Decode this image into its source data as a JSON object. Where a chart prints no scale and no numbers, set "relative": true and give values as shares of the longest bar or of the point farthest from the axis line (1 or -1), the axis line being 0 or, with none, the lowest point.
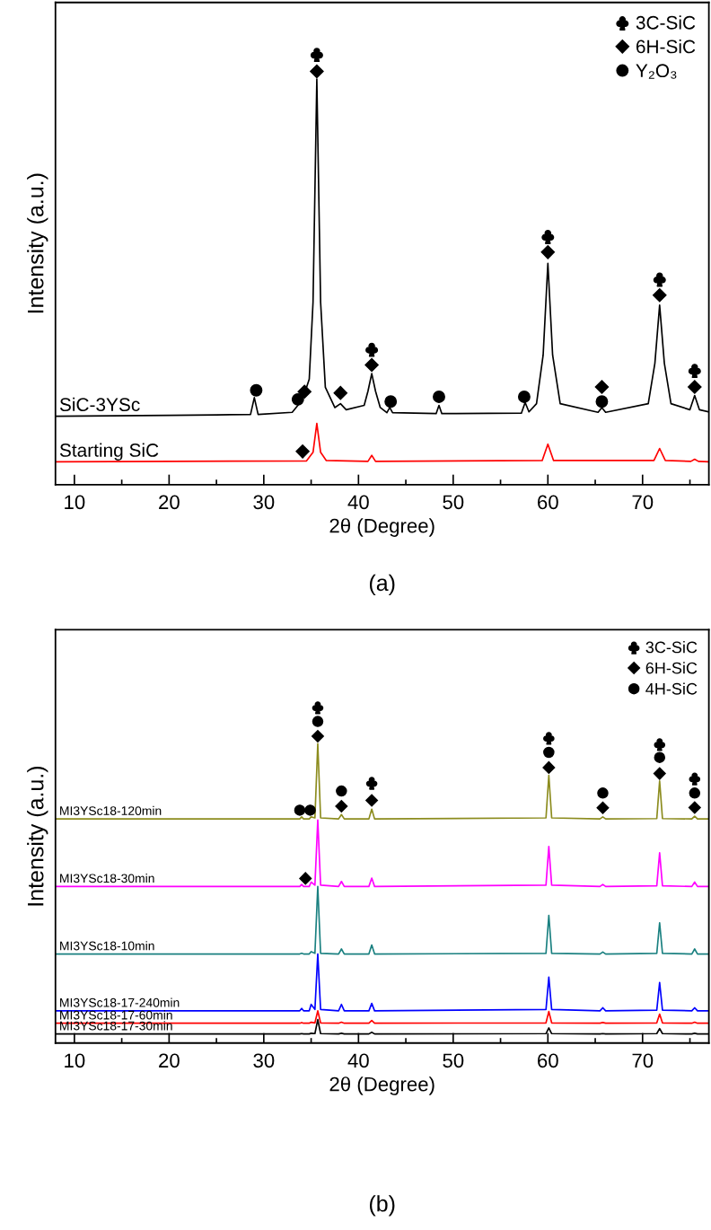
{
  "chart_data": [
    {
      "type": "line",
      "relative": true,
      "xlabel": "2θ (Degree)",
      "ylabel": "Intensity (a.u.)",
      "annotations": [
        "(a)"
      ],
      "xlim": [
        8,
        77
      ],
      "xticks": [
        10,
        {
          "value": 15,
          "label": null
        },
        20,
        {
          "value": 25,
          "label": null
        },
        30,
        {
          "value": 35,
          "label": null
        },
        40,
        {
          "value": 45,
          "label": null
        },
        50,
        {
          "value": 55,
          "label": null
        },
        60,
        {
          "value": 65,
          "label": null
        },
        70,
        {
          "value": 75,
          "label": null
        }
      ],
      "tick_labels": "x",
      "legend": "top right",
      "grid": false,
      "series": [
        {
          "name": "SiC-3YSc",
          "color": "#000000",
          "x": [
            8,
            20,
            25,
            28.6,
            29.0,
            29.4,
            33.0,
            33.6,
            34.1,
            34.8,
            35.2,
            35.6,
            36.0,
            36.5,
            37.5,
            38.1,
            38.7,
            40.6,
            41.0,
            41.4,
            41.8,
            42.3,
            43.0,
            43.3,
            43.6,
            48.2,
            48.5,
            48.8,
            57.2,
            57.6,
            58.0,
            58.8,
            59.5,
            60.0,
            60.5,
            61.3,
            65.3,
            65.7,
            66.1,
            70.6,
            71.3,
            71.8,
            72.3,
            73.0,
            75.0,
            75.5,
            76.0,
            77
          ],
          "values": [
            0.159,
            0.161,
            0.162,
            0.163,
            0.202,
            0.163,
            0.168,
            0.184,
            0.198,
            0.245,
            0.424,
            0.942,
            0.424,
            0.226,
            0.179,
            0.188,
            0.174,
            0.184,
            0.217,
            0.258,
            0.217,
            0.179,
            0.167,
            0.179,
            0.167,
            0.165,
            0.184,
            0.165,
            0.166,
            0.191,
            0.169,
            0.188,
            0.301,
            0.514,
            0.301,
            0.188,
            0.168,
            0.179,
            0.168,
            0.188,
            0.282,
            0.417,
            0.282,
            0.188,
            0.174,
            0.207,
            0.174,
            0.169
          ]
        },
        {
          "name": "Starting SiC",
          "color": "#ff0000",
          "x": [
            8,
            34.5,
            35.2,
            35.6,
            36.0,
            36.6,
            41.0,
            41.4,
            41.8,
            59.4,
            60.0,
            60.6,
            71.2,
            71.8,
            72.4,
            75.1,
            75.5,
            75.9,
            77
          ],
          "values": [
            0.053,
            0.055,
            0.075,
            0.142,
            0.075,
            0.056,
            0.054,
            0.068,
            0.054,
            0.056,
            0.094,
            0.056,
            0.056,
            0.084,
            0.056,
            0.054,
            0.059,
            0.054,
            0.053
          ]
        },
        {
          "type": "scatter",
          "name": "3C-SiC",
          "color": "#000000",
          "x": [
            35.6,
            41.4,
            60.0,
            71.8,
            75.5
          ],
          "values": [
            1.0,
            0.315,
            0.577,
            0.478,
            0.266
          ]
        },
        {
          "type": "scatter",
          "name": "6H-SiC",
          "color": "#000000",
          "marker": "diamond",
          "x": [
            35.6,
            41.4,
            60.0,
            71.8,
            75.5,
            65.7,
            34.3,
            38.1,
            34.1
          ],
          "values": [
            0.96,
            0.278,
            0.54,
            0.44,
            0.227,
            0.227,
            0.216,
            0.213,
            0.077
          ]
        },
        {
          "type": "scatter",
          "name": "Y₂O₃",
          "color": "#000000",
          "marker": "circle",
          "x": [
            29.2,
            33.6,
            43.4,
            48.5,
            57.5,
            65.7
          ],
          "values": [
            0.219,
            0.198,
            0.193,
            0.204,
            0.204,
            0.193
          ]
        }
      ]
    },
    {
      "type": "line",
      "relative": true,
      "xlabel": "2θ (Degree)",
      "ylabel": "Intensity (a.u.)",
      "annotations": [
        "(b)"
      ],
      "xlim": [
        8,
        77
      ],
      "xticks": [
        10,
        {
          "value": 15,
          "label": null
        },
        20,
        {
          "value": 25,
          "label": null
        },
        30,
        {
          "value": 35,
          "label": null
        },
        40,
        {
          "value": 45,
          "label": null
        },
        50,
        {
          "value": 55,
          "label": null
        },
        60,
        {
          "value": 65,
          "label": null
        },
        70,
        {
          "value": 75,
          "label": null
        }
      ],
      "tick_labels": "x",
      "legend": "top right",
      "grid": false,
      "series": [
        {
          "name": "MI3YSc18-120min",
          "color": "#8c8c1e",
          "x": [
            8,
            33.8,
            34.0,
            34.2,
            34.8,
            35.0,
            35.4,
            35.7,
            36.0,
            37.9,
            38.2,
            38.5,
            41.1,
            41.4,
            41.7,
            59.8,
            60.1,
            60.4,
            65.5,
            65.8,
            66.1,
            71.5,
            71.8,
            72.1,
            75.2,
            75.5,
            75.8,
            77
          ],
          "values": [
            0.667,
            0.667,
            0.673,
            0.667,
            0.667,
            0.673,
            0.67,
            0.891,
            0.67,
            0.667,
            0.68,
            0.667,
            0.667,
            0.696,
            0.667,
            0.67,
            0.797,
            0.67,
            0.667,
            0.673,
            0.667,
            0.668,
            0.78,
            0.668,
            0.667,
            0.675,
            0.667,
            0.667
          ]
        },
        {
          "name": "MI3YSc18-30min",
          "color": "#ff00ff",
          "x": [
            8,
            33.8,
            34.0,
            34.2,
            34.8,
            35.0,
            35.4,
            35.7,
            36.0,
            37.9,
            38.2,
            38.5,
            41.1,
            41.4,
            41.7,
            59.8,
            60.1,
            60.4,
            65.5,
            65.8,
            66.1,
            71.5,
            71.8,
            72.1,
            75.2,
            75.5,
            75.8,
            77
          ],
          "values": [
            0.466,
            0.466,
            0.472,
            0.466,
            0.466,
            0.479,
            0.47,
            0.664,
            0.47,
            0.466,
            0.481,
            0.466,
            0.466,
            0.491,
            0.466,
            0.47,
            0.585,
            0.47,
            0.466,
            0.472,
            0.466,
            0.468,
            0.566,
            0.468,
            0.466,
            0.479,
            0.466,
            0.466
          ]
        },
        {
          "name": "MI3YSc18-10min",
          "color": "#1a8080",
          "x": [
            8,
            33.8,
            34.0,
            34.2,
            34.8,
            35.0,
            35.4,
            35.7,
            36.0,
            37.9,
            38.2,
            38.5,
            41.1,
            41.4,
            41.7,
            59.8,
            60.1,
            60.4,
            65.5,
            65.8,
            66.1,
            71.5,
            71.8,
            72.1,
            75.2,
            75.5,
            75.8,
            77
          ],
          "values": [
            0.265,
            0.265,
            0.267,
            0.265,
            0.265,
            0.272,
            0.267,
            0.466,
            0.267,
            0.265,
            0.28,
            0.265,
            0.265,
            0.292,
            0.265,
            0.267,
            0.38,
            0.267,
            0.265,
            0.271,
            0.265,
            0.267,
            0.358,
            0.267,
            0.265,
            0.28,
            0.265,
            0.265
          ]
        },
        {
          "name": "MI3YSc18-17-240min",
          "color": "#0000ff",
          "x": [
            8,
            33.8,
            34.0,
            34.2,
            34.8,
            35.0,
            35.4,
            35.7,
            36.0,
            37.9,
            38.2,
            38.5,
            41.1,
            41.4,
            41.7,
            59.8,
            60.1,
            60.4,
            65.5,
            65.8,
            66.1,
            71.5,
            71.8,
            72.1,
            75.2,
            75.5,
            75.8,
            77
          ],
          "values": [
            0.096,
            0.096,
            0.103,
            0.096,
            0.096,
            0.115,
            0.1,
            0.265,
            0.1,
            0.096,
            0.115,
            0.096,
            0.096,
            0.118,
            0.096,
            0.1,
            0.196,
            0.1,
            0.096,
            0.105,
            0.096,
            0.098,
            0.18,
            0.098,
            0.096,
            0.105,
            0.096,
            0.096
          ]
        },
        {
          "name": "MI3YSc18-17-60min",
          "color": "#ff0000",
          "x": [
            8,
            33.8,
            34.0,
            34.2,
            34.8,
            35.0,
            35.4,
            35.7,
            36.0,
            37.9,
            38.2,
            38.5,
            41.1,
            41.4,
            41.7,
            59.8,
            60.1,
            60.4,
            65.5,
            65.8,
            66.1,
            71.5,
            71.8,
            72.1,
            75.2,
            75.5,
            75.8,
            77
          ],
          "values": [
            0.059,
            0.059,
            0.061,
            0.059,
            0.059,
            0.062,
            0.06,
            0.096,
            0.06,
            0.059,
            0.062,
            0.059,
            0.059,
            0.067,
            0.059,
            0.06,
            0.094,
            0.06,
            0.059,
            0.061,
            0.059,
            0.06,
            0.086,
            0.06,
            0.059,
            0.062,
            0.059,
            0.059
          ]
        },
        {
          "name": "MI3YSc18-17-30min",
          "color": "#000000",
          "x": [
            8,
            33.8,
            34.0,
            34.2,
            34.8,
            35.0,
            35.4,
            35.7,
            36.0,
            37.9,
            38.2,
            38.5,
            41.1,
            41.4,
            41.7,
            59.8,
            60.1,
            60.4,
            65.5,
            65.8,
            66.1,
            71.5,
            71.8,
            72.1,
            75.2,
            75.5,
            75.8,
            77
          ],
          "values": [
            0.027,
            0.027,
            0.028,
            0.027,
            0.027,
            0.029,
            0.028,
            0.07,
            0.028,
            0.027,
            0.029,
            0.027,
            0.027,
            0.032,
            0.027,
            0.028,
            0.045,
            0.028,
            0.027,
            0.028,
            0.027,
            0.028,
            0.043,
            0.028,
            0.027,
            0.029,
            0.027,
            0.027
          ]
        },
        {
          "type": "scatter",
          "name": "3C-SiC",
          "color": "#000000",
          "x": [
            35.7,
            60.1,
            71.8,
            75.5,
            41.4
          ],
          "values": [
            1.0,
            0.909,
            0.89,
            0.788,
            0.775
          ]
        },
        {
          "type": "scatter",
          "name": "6H-SiC",
          "color": "#000000",
          "marker": "diamond",
          "x": [
            35.7,
            60.1,
            71.8,
            75.5,
            41.4,
            38.2,
            65.8,
            34.4
          ],
          "values": [
            0.913,
            0.82,
            0.802,
            0.701,
            0.722,
            0.705,
            0.7,
            0.49
          ]
        },
        {
          "type": "scatter",
          "name": "4H-SiC",
          "color": "#000000",
          "marker": "circle",
          "x": [
            35.7,
            60.1,
            71.8,
            75.5,
            38.2,
            65.8,
            33.8,
            34.9
          ],
          "values": [
            0.957,
            0.865,
            0.85,
            0.744,
            0.75,
            0.744,
            0.693,
            0.693
          ]
        }
      ]
    }
  ]
}
